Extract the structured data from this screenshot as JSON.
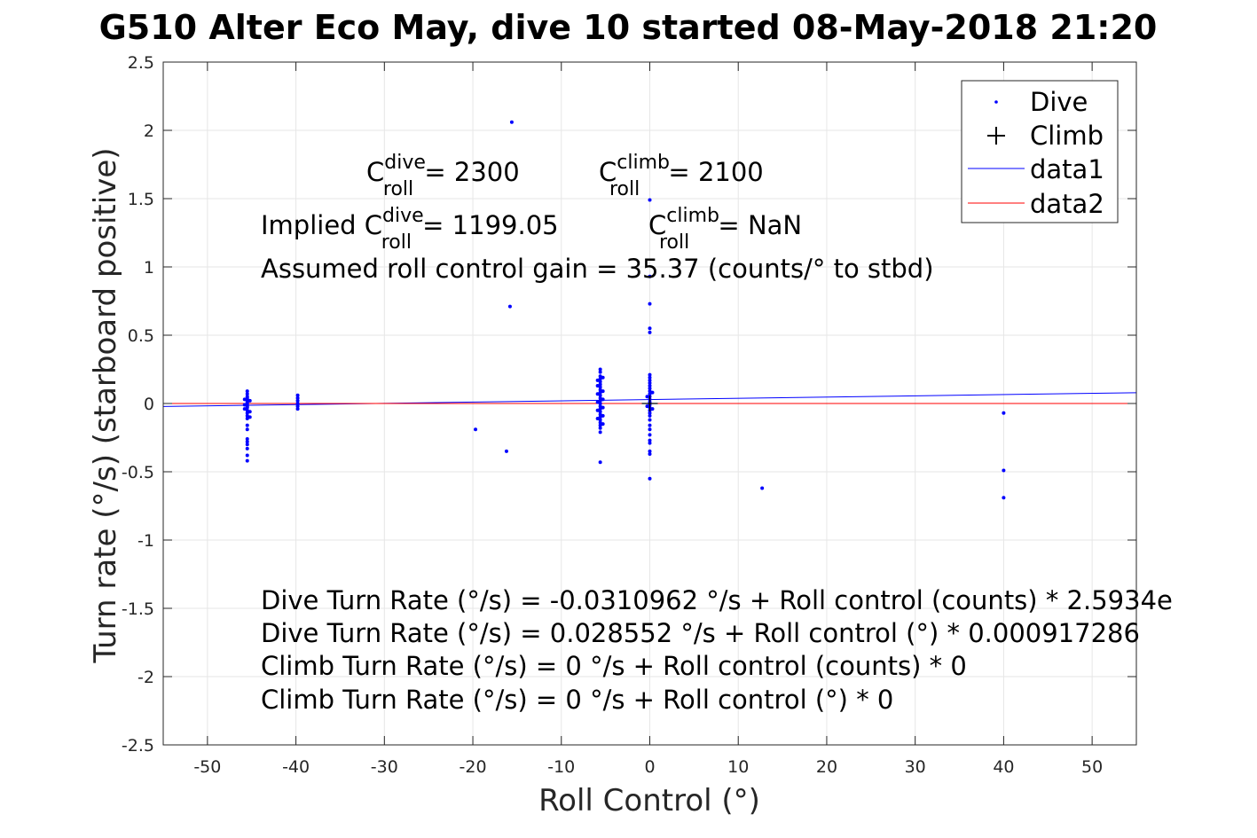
{
  "chart_data": {
    "type": "scatter",
    "title": "G510 Alter Eco May, dive 10 started 08-May-2018 21:20",
    "xlabel": "Roll Control (°)",
    "ylabel": "Turn rate (°/s) (starboard positive)",
    "xlim": [
      -55,
      55
    ],
    "ylim": [
      -2.5,
      2.5
    ],
    "xticks": [
      -50,
      -40,
      -30,
      -20,
      -10,
      0,
      10,
      20,
      30,
      40,
      50
    ],
    "yticks": [
      -2.5,
      -2,
      -1.5,
      -1,
      -0.5,
      0,
      0.5,
      1,
      1.5,
      2,
      2.5
    ],
    "xtick_labels": [
      "-50",
      "-40",
      "-30",
      "-20",
      "-10",
      "0",
      "10",
      "20",
      "30",
      "40",
      "50"
    ],
    "ytick_labels": [
      "-2.5",
      "-2",
      "-1.5",
      "-1",
      "-0.5",
      "0",
      "0.5",
      "1",
      "1.5",
      "2",
      "2.5"
    ],
    "grid": true,
    "legend_position": "top-right",
    "legend": [
      "Dive",
      "Climb",
      "data1",
      "data2"
    ],
    "series": [
      {
        "name": "Dive",
        "marker": "dot",
        "color": "#0000ff",
        "points": [
          [
            -45.5,
            0.09
          ],
          [
            -45.5,
            0.07
          ],
          [
            -45.5,
            0.05
          ],
          [
            -45.5,
            0.04
          ],
          [
            -45.5,
            0.03
          ],
          [
            -45.5,
            0.02
          ],
          [
            -45.5,
            0.01
          ],
          [
            -45.5,
            0.0
          ],
          [
            -45.5,
            -0.01
          ],
          [
            -45.5,
            -0.02
          ],
          [
            -45.5,
            -0.03
          ],
          [
            -45.5,
            -0.05
          ],
          [
            -45.5,
            -0.07
          ],
          [
            -45.5,
            -0.09
          ],
          [
            -45.5,
            -0.11
          ],
          [
            -45.5,
            -0.16
          ],
          [
            -45.5,
            -0.19
          ],
          [
            -45.5,
            -0.26
          ],
          [
            -45.5,
            -0.28
          ],
          [
            -45.5,
            -0.3
          ],
          [
            -45.5,
            -0.33
          ],
          [
            -45.5,
            -0.38
          ],
          [
            -45.5,
            -0.42
          ],
          [
            -45.8,
            0.03
          ],
          [
            -45.8,
            -0.01
          ],
          [
            -45.8,
            -0.04
          ],
          [
            -45.2,
            0.02
          ],
          [
            -45.2,
            -0.06
          ],
          [
            -45.2,
            -0.1
          ],
          [
            -39.8,
            0.06
          ],
          [
            -39.8,
            0.04
          ],
          [
            -39.8,
            0.02
          ],
          [
            -39.8,
            0.0
          ],
          [
            -39.8,
            -0.02
          ],
          [
            -39.8,
            -0.04
          ],
          [
            -19.7,
            -0.19
          ],
          [
            -16.2,
            -0.35
          ],
          [
            -15.8,
            0.71
          ],
          [
            -15.6,
            2.06
          ],
          [
            -5.6,
            0.25
          ],
          [
            -5.6,
            0.23
          ],
          [
            -5.6,
            0.2
          ],
          [
            -5.6,
            0.18
          ],
          [
            -5.6,
            0.16
          ],
          [
            -5.6,
            0.14
          ],
          [
            -5.6,
            0.12
          ],
          [
            -5.6,
            0.1
          ],
          [
            -5.6,
            0.08
          ],
          [
            -5.6,
            0.06
          ],
          [
            -5.6,
            0.04
          ],
          [
            -5.6,
            0.02
          ],
          [
            -5.6,
            0.0
          ],
          [
            -5.6,
            -0.02
          ],
          [
            -5.6,
            -0.04
          ],
          [
            -5.6,
            -0.06
          ],
          [
            -5.6,
            -0.08
          ],
          [
            -5.6,
            -0.1
          ],
          [
            -5.6,
            -0.12
          ],
          [
            -5.6,
            -0.14
          ],
          [
            -5.6,
            -0.16
          ],
          [
            -5.6,
            -0.18
          ],
          [
            -5.6,
            -0.21
          ],
          [
            -5.6,
            -0.43
          ],
          [
            -5.9,
            0.17
          ],
          [
            -5.9,
            0.13
          ],
          [
            -5.9,
            0.07
          ],
          [
            -5.9,
            0.01
          ],
          [
            -5.9,
            -0.05
          ],
          [
            -5.9,
            -0.11
          ],
          [
            -5.3,
            0.19
          ],
          [
            -5.3,
            0.09
          ],
          [
            -5.3,
            0.03
          ],
          [
            -5.3,
            -0.03
          ],
          [
            -5.3,
            -0.09
          ],
          [
            -5.3,
            -0.15
          ],
          [
            0,
            1.49
          ],
          [
            0,
            0.93
          ],
          [
            0,
            0.73
          ],
          [
            0,
            0.55
          ],
          [
            0,
            0.52
          ],
          [
            0,
            0.21
          ],
          [
            0,
            0.19
          ],
          [
            0,
            0.17
          ],
          [
            0,
            0.15
          ],
          [
            0,
            0.13
          ],
          [
            0,
            0.11
          ],
          [
            0,
            0.09
          ],
          [
            0,
            0.07
          ],
          [
            0,
            0.05
          ],
          [
            0,
            0.03
          ],
          [
            0,
            0.01
          ],
          [
            0,
            -0.01
          ],
          [
            0,
            -0.03
          ],
          [
            0,
            -0.05
          ],
          [
            0,
            -0.07
          ],
          [
            0,
            -0.09
          ],
          [
            0,
            -0.12
          ],
          [
            0,
            -0.16
          ],
          [
            0,
            -0.19
          ],
          [
            0,
            -0.23
          ],
          [
            0,
            -0.27
          ],
          [
            0,
            -0.29
          ],
          [
            0,
            -0.35
          ],
          [
            0,
            -0.37
          ],
          [
            0,
            -0.55
          ],
          [
            -0.3,
            0.05
          ],
          [
            -0.3,
            -0.02
          ],
          [
            0.3,
            0.08
          ],
          [
            0.3,
            -0.04
          ],
          [
            12.7,
            -0.62
          ],
          [
            40,
            -0.07
          ],
          [
            40,
            -0.49
          ],
          [
            40,
            -0.69
          ]
        ]
      },
      {
        "name": "Climb",
        "marker": "plus",
        "color": "#000000",
        "points": [
          [
            0,
            0
          ]
        ]
      },
      {
        "name": "data1",
        "marker": "line",
        "color": "#0000ff",
        "x": [
          -55,
          55
        ],
        "y": [
          -0.0219,
          0.079
        ]
      },
      {
        "name": "data2",
        "marker": "line",
        "color": "#ff0000",
        "x": [
          -55,
          55
        ],
        "y": [
          0,
          0
        ]
      }
    ],
    "annotations": {
      "c_dive_prefix": "C",
      "c_dive_sup": "dive",
      "c_dive_sub": "roll",
      "c_dive_value": " = 2300",
      "c_climb_prefix": "C",
      "c_climb_sup": "climb",
      "c_climb_sub": "roll",
      "c_climb_value": " = 2100",
      "implied_prefix": "Implied C",
      "implied_sup": "dive",
      "implied_sub": "roll",
      "implied_value": " = 1199.05",
      "implied_climb_prefix": "C",
      "implied_climb_sup": "climb",
      "implied_climb_sub": "roll",
      "implied_climb_value": " = NaN",
      "gain_line": "Assumed roll control gain = 35.37 (counts/° to stbd)",
      "fit_lines": [
        "Dive Turn Rate (°/s) = -0.0310962 °/s + Roll control (counts) * 2.5934e",
        "Dive Turn Rate (°/s) = 0.028552 °/s + Roll control (°) * 0.000917286",
        "Climb Turn Rate (°/s) = 0 °/s + Roll control (counts) * 0",
        "Climb Turn Rate (°/s) = 0 °/s + Roll control (°) * 0"
      ]
    }
  }
}
